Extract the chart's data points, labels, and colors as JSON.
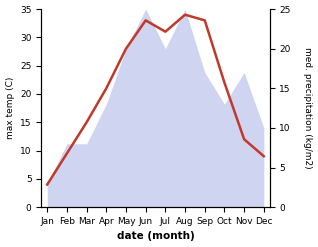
{
  "months": [
    "Jan",
    "Feb",
    "Mar",
    "Apr",
    "May",
    "Jun",
    "Jul",
    "Aug",
    "Sep",
    "Oct",
    "Nov",
    "Dec"
  ],
  "temperature": [
    4,
    9.5,
    15,
    21,
    28,
    33,
    31,
    34,
    33,
    22,
    12,
    9
  ],
  "precipitation": [
    3,
    8,
    8,
    13,
    20,
    25,
    20,
    25,
    17,
    13,
    17,
    10
  ],
  "temp_color": "#c0392b",
  "precip_fill_color": "#b0b8e8",
  "precip_fill_alpha": 0.6,
  "temp_ylim": [
    0,
    35
  ],
  "precip_ylim": [
    0,
    25
  ],
  "temp_yticks": [
    0,
    5,
    10,
    15,
    20,
    25,
    30,
    35
  ],
  "precip_yticks": [
    0,
    5,
    10,
    15,
    20,
    25
  ],
  "xlabel": "date (month)",
  "ylabel_left": "max temp (C)",
  "ylabel_right": "med. precipitation (kg/m2)",
  "figsize": [
    3.18,
    2.47
  ],
  "dpi": 100
}
